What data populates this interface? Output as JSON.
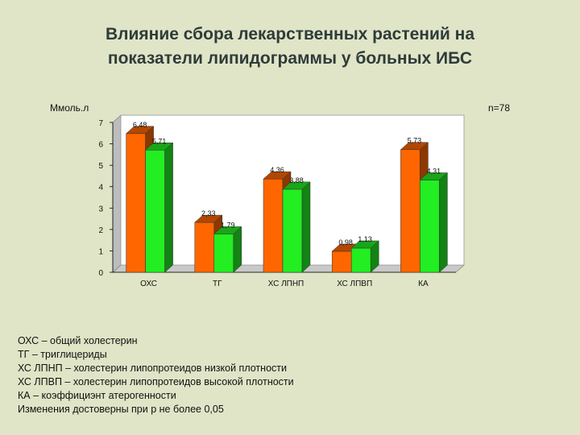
{
  "title_lines": [
    "Влияние сбора лекарственных растений на",
    "показатели липидограммы у больных ИБС"
  ],
  "unit_label": "Ммоль.л",
  "n_label": "n=78",
  "legend_lines": [
    "ОХС – общий холестерин",
    "ТГ – триглицериды",
    "ХС ЛПНП – холестерин липопротеидов низкой плотности",
    "ХС ЛПВП – холестерин липопротеидов высокой плотности",
    "КА – коэффициэнт атерогенности",
    "Изменения достоверны при p не более 0,05"
  ],
  "chart_data": {
    "type": "bar",
    "categories": [
      "ОХС",
      "ТГ",
      "ХС ЛПНП",
      "ХС ЛПВП",
      "КА"
    ],
    "series": [
      {
        "values": [
          6.48,
          2.33,
          4.36,
          0.98,
          5.73
        ],
        "color": "#ff6600"
      },
      {
        "values": [
          5.71,
          1.79,
          3.88,
          1.13,
          4.31
        ],
        "color": "#22ee22"
      }
    ],
    "data_labels": [
      [
        "6,48",
        "2,33",
        "4,36",
        "0,98",
        "5,73"
      ],
      [
        "5,71",
        "1,79",
        "3,88",
        "1,13",
        "4,31"
      ]
    ],
    "yticks": [
      "0",
      "1",
      "2",
      "3",
      "4",
      "5",
      "6",
      "7"
    ],
    "ylim": [
      0,
      7
    ],
    "grid": false
  }
}
